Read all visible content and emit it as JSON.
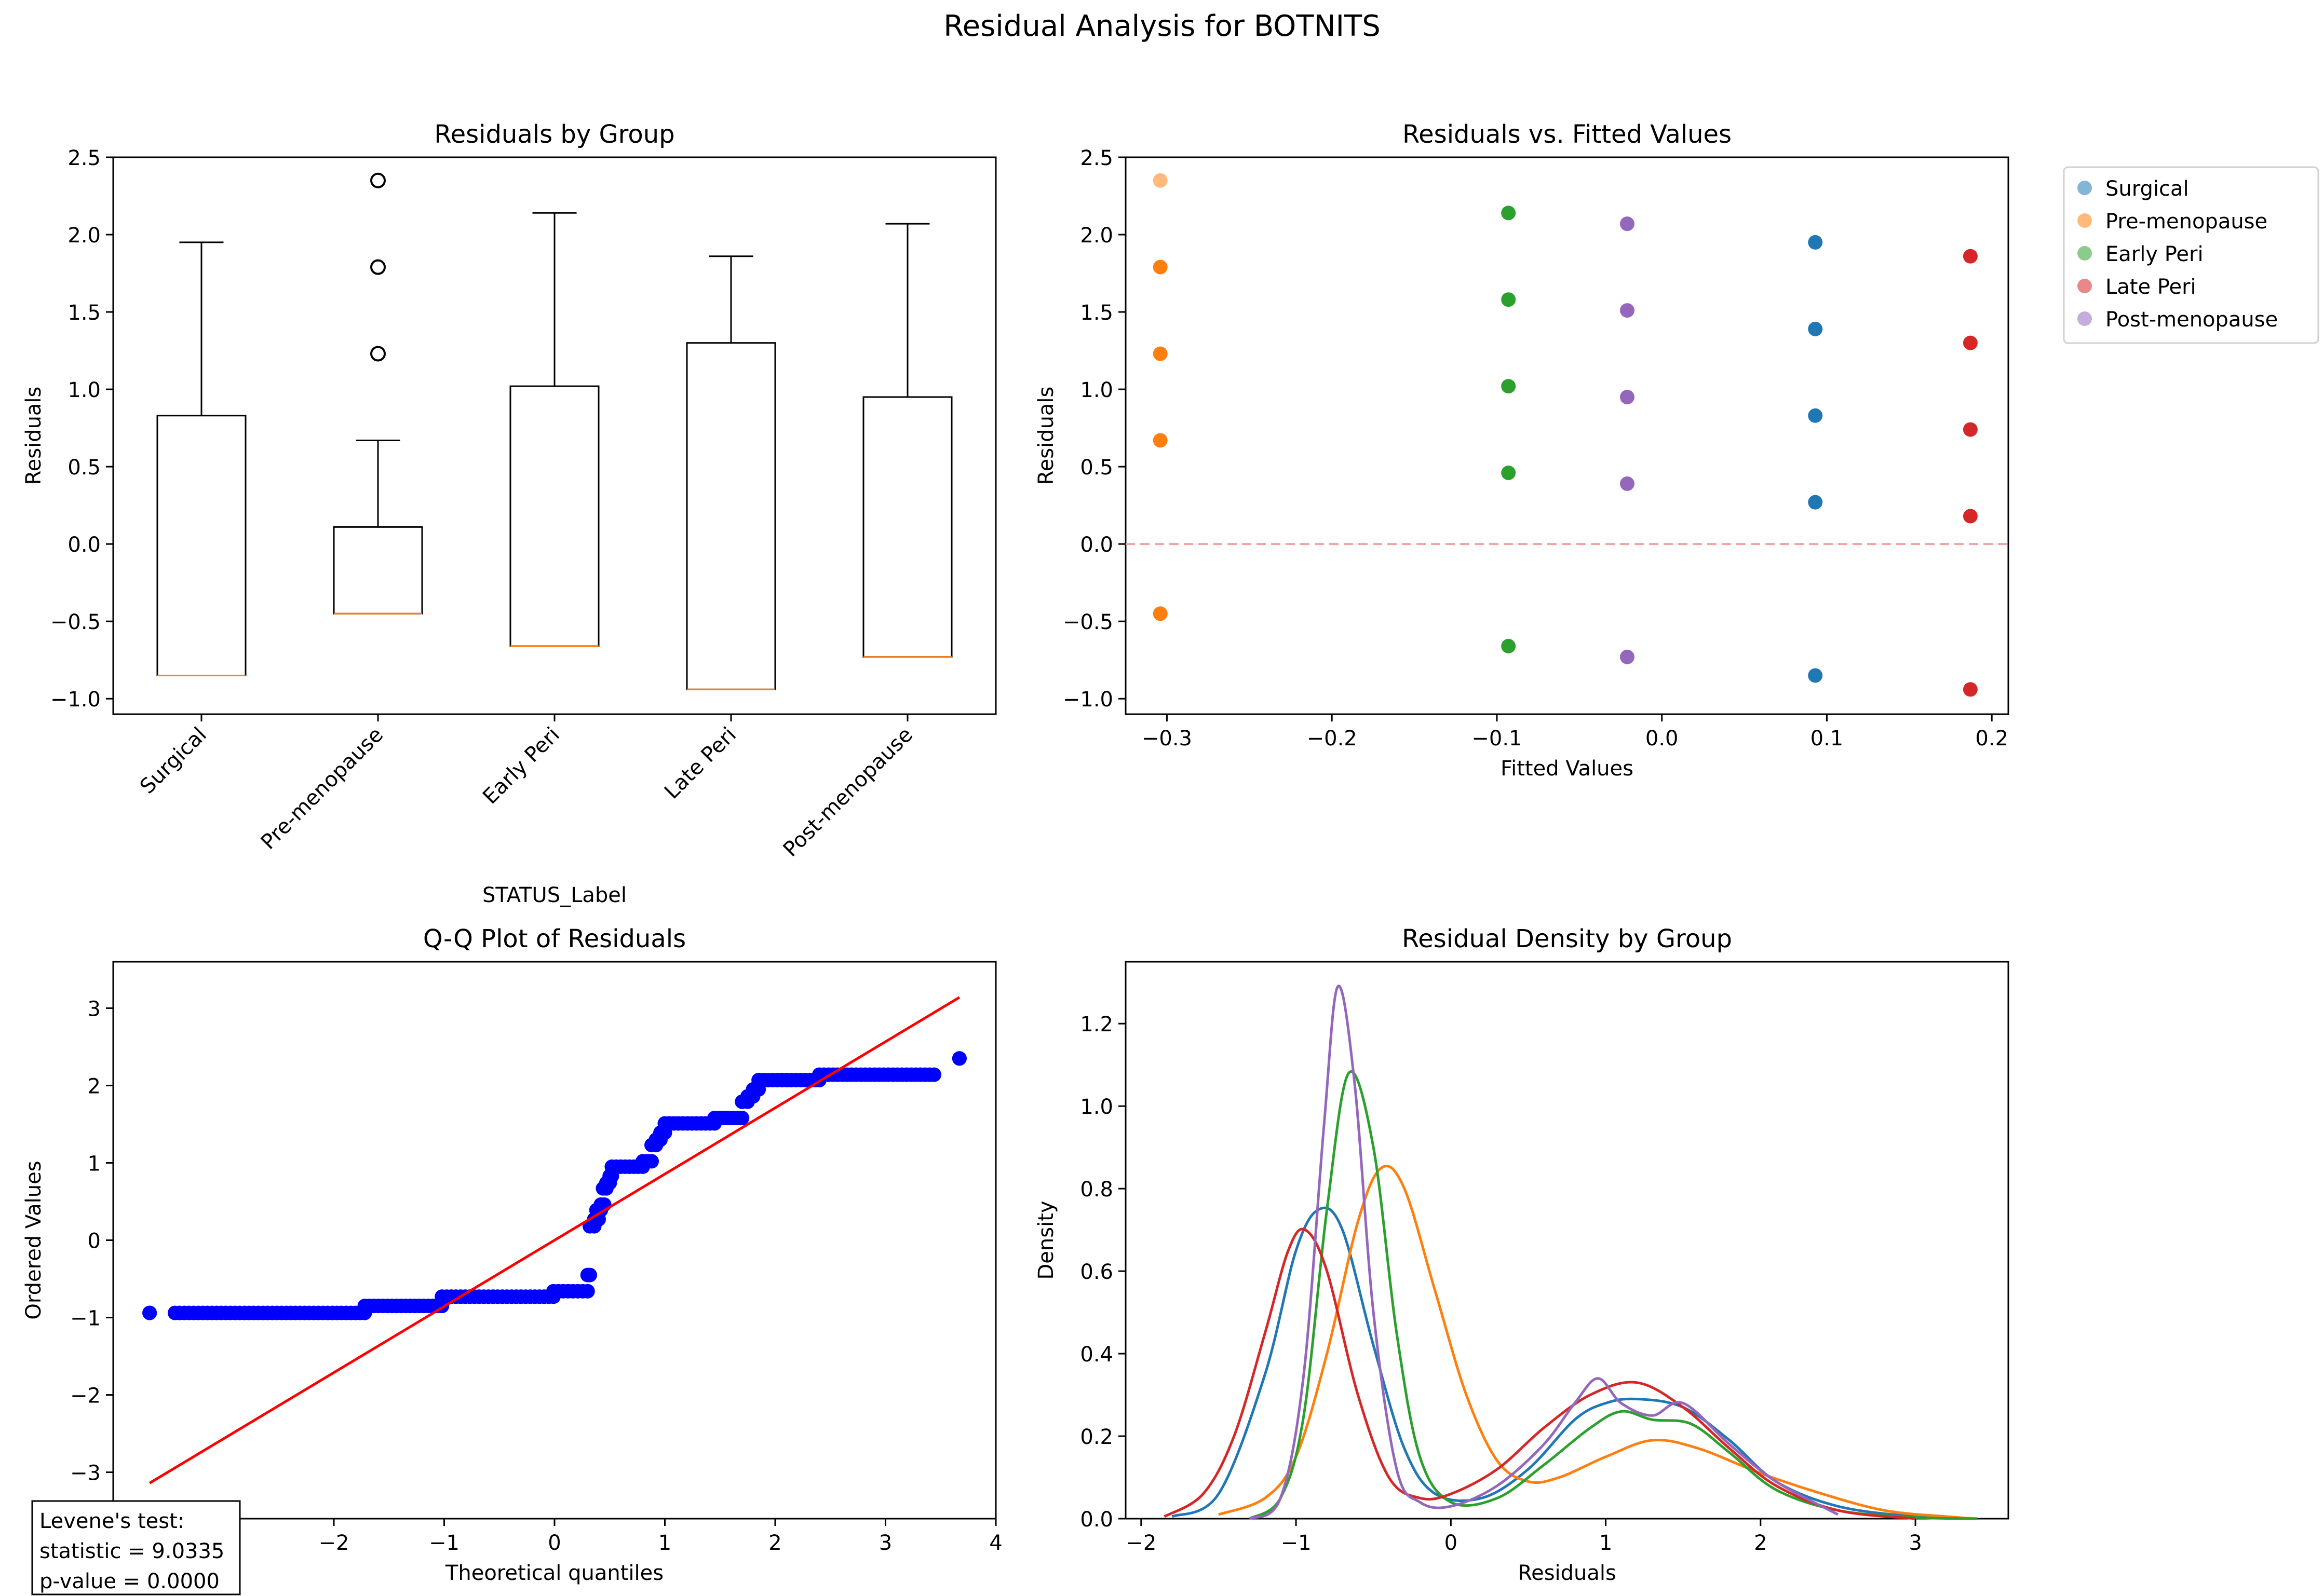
{
  "figure": {
    "suptitle": "Residual Analysis for BOTNITS"
  },
  "colors": {
    "surgical": "#1f77b4",
    "pre": "#ff7f0e",
    "early": "#2ca02c",
    "late": "#d62728",
    "post": "#9467bd",
    "qq_points": "#0000ff",
    "qq_line": "#ff0000",
    "zero_line": "#f4a3a3"
  },
  "chart_data": [
    {
      "id": "box",
      "type": "box",
      "title": "Residuals by Group",
      "xlabel": "STATUS_Label",
      "ylabel": "Residuals",
      "ylim": [
        -1.1,
        2.5
      ],
      "yticks": [
        "-1.0",
        "-0.5",
        "0.0",
        "0.5",
        "1.0",
        "1.5",
        "2.0",
        "2.5"
      ],
      "categories": [
        "Surgical",
        "Pre-menopause",
        "Early Peri",
        "Late Peri",
        "Post-menopause"
      ],
      "boxes": [
        {
          "q1": -0.85,
          "median": -0.85,
          "q3": 0.83,
          "whisker_low": -0.85,
          "whisker_high": 1.95,
          "outliers": []
        },
        {
          "q1": -0.45,
          "median": -0.45,
          "q3": 0.11,
          "whisker_low": -0.45,
          "whisker_high": 0.67,
          "outliers": [
            1.23,
            1.79,
            2.35
          ]
        },
        {
          "q1": -0.66,
          "median": -0.66,
          "q3": 1.02,
          "whisker_low": -0.66,
          "whisker_high": 2.14,
          "outliers": []
        },
        {
          "q1": -0.94,
          "median": -0.94,
          "q3": 1.3,
          "whisker_low": -0.94,
          "whisker_high": 1.86,
          "outliers": []
        },
        {
          "q1": -0.73,
          "median": -0.73,
          "q3": 0.95,
          "whisker_low": -0.73,
          "whisker_high": 2.07,
          "outliers": []
        }
      ]
    },
    {
      "id": "scatter",
      "type": "scatter",
      "title": "Residuals vs. Fitted Values",
      "xlabel": "Fitted Values",
      "ylabel": "Residuals",
      "xlim": [
        -0.325,
        0.21
      ],
      "ylim": [
        -1.1,
        2.5
      ],
      "xticks": [
        "-0.3",
        "-0.2",
        "-0.1",
        "0.0",
        "0.1",
        "0.2"
      ],
      "yticks": [
        "-1.0",
        "-0.5",
        "0.0",
        "0.5",
        "1.0",
        "1.5",
        "2.0",
        "2.5"
      ],
      "legend_position": "outside top-right",
      "series": [
        {
          "name": "Surgical",
          "x": [
            0.093,
            0.093,
            0.093,
            0.093,
            0.093
          ],
          "y": [
            -0.85,
            0.27,
            0.83,
            1.39,
            1.95
          ]
        },
        {
          "name": "Pre-menopause",
          "x": [
            -0.304,
            -0.304,
            -0.304,
            -0.304,
            -0.304
          ],
          "y": [
            -0.45,
            0.67,
            1.23,
            1.79,
            2.35
          ]
        },
        {
          "name": "Early Peri",
          "x": [
            -0.093,
            -0.093,
            -0.093,
            -0.093,
            -0.093
          ],
          "y": [
            -0.66,
            0.46,
            1.02,
            1.58,
            2.14
          ]
        },
        {
          "name": "Late Peri",
          "x": [
            0.187,
            0.187,
            0.187,
            0.187,
            0.187
          ],
          "y": [
            -0.94,
            0.18,
            0.74,
            1.3,
            1.86
          ]
        },
        {
          "name": "Post-menopause",
          "x": [
            -0.021,
            -0.021,
            -0.021,
            -0.021,
            -0.021
          ],
          "y": [
            -0.73,
            0.39,
            0.95,
            1.51,
            2.07
          ]
        }
      ],
      "reference_line_y": 0
    },
    {
      "id": "qq",
      "type": "scatter",
      "title": "Q-Q Plot of Residuals",
      "xlabel": "Theoretical quantiles",
      "ylabel": "Ordered Values",
      "xlim": [
        -4.0,
        4.0
      ],
      "ylim": [
        -3.6,
        3.6
      ],
      "xticks": [
        "-4",
        "-3",
        "-2",
        "-1",
        "0",
        "1",
        "2",
        "3",
        "4"
      ],
      "yticks": [
        "-3",
        "-2",
        "-1",
        "0",
        "1",
        "2",
        "3"
      ],
      "fit_line": {
        "x": [
          -3.67,
          3.67
        ],
        "y": [
          -3.14,
          3.14
        ]
      },
      "segments": [
        {
          "x_from": -3.67,
          "x_to": -3.67,
          "y": -0.94
        },
        {
          "x_from": -3.44,
          "x_to": -1.72,
          "y": -0.94
        },
        {
          "x_from": -1.72,
          "x_to": -1.02,
          "y": -0.85
        },
        {
          "x_from": -1.02,
          "x_to": -0.01,
          "y": -0.73
        },
        {
          "x_from": -0.01,
          "x_to": 0.3,
          "y": -0.66
        },
        {
          "x_from": 0.3,
          "x_to": 0.32,
          "y": -0.45
        },
        {
          "x_from": 0.32,
          "x_to": 0.36,
          "y": 0.18
        },
        {
          "x_from": 0.36,
          "x_to": 0.4,
          "y": 0.27
        },
        {
          "x_from": 0.38,
          "x_to": 0.42,
          "y": 0.39
        },
        {
          "x_from": 0.42,
          "x_to": 0.45,
          "y": 0.46
        },
        {
          "x_from": 0.44,
          "x_to": 0.47,
          "y": 0.67
        },
        {
          "x_from": 0.47,
          "x_to": 0.5,
          "y": 0.74
        },
        {
          "x_from": 0.5,
          "x_to": 0.52,
          "y": 0.83
        },
        {
          "x_from": 0.52,
          "x_to": 0.8,
          "y": 0.95
        },
        {
          "x_from": 0.8,
          "x_to": 0.88,
          "y": 1.02
        },
        {
          "x_from": 0.88,
          "x_to": 0.92,
          "y": 1.23
        },
        {
          "x_from": 0.92,
          "x_to": 0.96,
          "y": 1.3
        },
        {
          "x_from": 0.96,
          "x_to": 1.0,
          "y": 1.39
        },
        {
          "x_from": 1.0,
          "x_to": 1.45,
          "y": 1.51
        },
        {
          "x_from": 1.45,
          "x_to": 1.7,
          "y": 1.58
        },
        {
          "x_from": 1.7,
          "x_to": 1.75,
          "y": 1.79
        },
        {
          "x_from": 1.75,
          "x_to": 1.8,
          "y": 1.86
        },
        {
          "x_from": 1.8,
          "x_to": 1.85,
          "y": 1.95
        },
        {
          "x_from": 1.85,
          "x_to": 2.4,
          "y": 2.07
        },
        {
          "x_from": 2.4,
          "x_to": 3.44,
          "y": 2.14
        },
        {
          "x_from": 3.67,
          "x_to": 3.67,
          "y": 2.35
        }
      ],
      "annotation": {
        "line1": "Levene's test:",
        "line2": "statistic = 9.0335",
        "line3": "p-value = 0.0000"
      }
    },
    {
      "id": "density",
      "type": "line",
      "title": "Residual Density by Group",
      "xlabel": "Residuals",
      "ylabel": "Density",
      "xlim": [
        -2.1,
        3.6
      ],
      "ylim": [
        0,
        1.35
      ],
      "xticks": [
        "-2",
        "-1",
        "0",
        "1",
        "2",
        "3"
      ],
      "yticks": [
        "0.0",
        "0.2",
        "0.4",
        "0.6",
        "0.8",
        "1.0",
        "1.2"
      ],
      "series": [
        {
          "name": "Surgical",
          "x": [
            -1.8,
            -1.5,
            -1.2,
            -1.0,
            -0.85,
            -0.7,
            -0.5,
            -0.3,
            -0.1,
            0.2,
            0.5,
            0.8,
            1.0,
            1.2,
            1.5,
            1.8,
            2.1,
            2.5,
            3.0,
            3.4
          ],
          "y": [
            0.005,
            0.06,
            0.35,
            0.65,
            0.75,
            0.7,
            0.42,
            0.17,
            0.06,
            0.05,
            0.12,
            0.24,
            0.28,
            0.29,
            0.27,
            0.19,
            0.09,
            0.03,
            0.005,
            0.0
          ]
        },
        {
          "name": "Pre-menopause",
          "x": [
            -1.5,
            -1.2,
            -1.0,
            -0.8,
            -0.6,
            -0.45,
            -0.3,
            -0.1,
            0.1,
            0.3,
            0.5,
            0.7,
            1.0,
            1.3,
            1.6,
            2.0,
            2.4,
            2.8,
            3.2,
            3.4
          ],
          "y": [
            0.01,
            0.05,
            0.15,
            0.4,
            0.72,
            0.85,
            0.8,
            0.55,
            0.3,
            0.14,
            0.09,
            0.1,
            0.15,
            0.19,
            0.17,
            0.11,
            0.06,
            0.02,
            0.005,
            0.0
          ]
        },
        {
          "name": "Early Peri",
          "x": [
            -1.3,
            -1.1,
            -0.95,
            -0.8,
            -0.66,
            -0.5,
            -0.35,
            -0.2,
            0.0,
            0.3,
            0.6,
            0.9,
            1.1,
            1.3,
            1.55,
            1.8,
            2.1,
            2.5,
            3.0,
            3.4
          ],
          "y": [
            0.0,
            0.05,
            0.25,
            0.75,
            1.08,
            0.9,
            0.45,
            0.15,
            0.04,
            0.05,
            0.13,
            0.22,
            0.26,
            0.24,
            0.23,
            0.16,
            0.07,
            0.02,
            0.003,
            0.0
          ]
        },
        {
          "name": "Late Peri",
          "x": [
            -1.85,
            -1.6,
            -1.4,
            -1.2,
            -1.05,
            -0.94,
            -0.8,
            -0.6,
            -0.4,
            -0.2,
            0.0,
            0.3,
            0.6,
            0.9,
            1.2,
            1.5,
            1.8,
            2.1,
            2.5,
            3.0
          ],
          "y": [
            0.005,
            0.06,
            0.2,
            0.45,
            0.65,
            0.7,
            0.6,
            0.3,
            0.1,
            0.05,
            0.06,
            0.12,
            0.22,
            0.3,
            0.33,
            0.27,
            0.17,
            0.08,
            0.02,
            0.0
          ]
        },
        {
          "name": "Post-menopause",
          "x": [
            -1.3,
            -1.1,
            -0.95,
            -0.82,
            -0.73,
            -0.62,
            -0.5,
            -0.35,
            -0.2,
            0.0,
            0.3,
            0.6,
            0.8,
            0.95,
            1.1,
            1.3,
            1.5,
            1.8,
            2.1,
            2.5
          ],
          "y": [
            0.0,
            0.05,
            0.35,
            0.95,
            1.29,
            1.05,
            0.5,
            0.12,
            0.04,
            0.03,
            0.08,
            0.18,
            0.28,
            0.34,
            0.28,
            0.25,
            0.28,
            0.18,
            0.09,
            0.01
          ]
        }
      ]
    }
  ]
}
